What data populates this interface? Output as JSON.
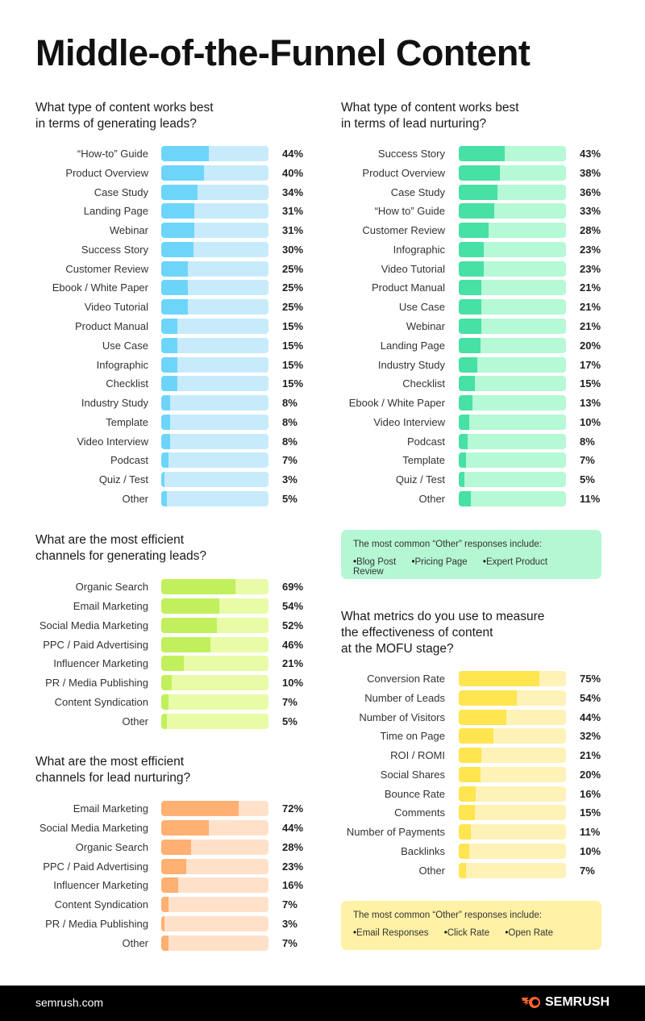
{
  "title": "Middle-of-the-Funnel Content",
  "chart_data": [
    {
      "type": "bar",
      "orientation": "horizontal",
      "title": "What type of content works best in terms of generating leads?",
      "xlim": [
        0,
        100
      ],
      "unit": "%",
      "categories": [
        "“How-to” Guide",
        "Product Overview",
        "Case Study",
        "Landing Page",
        "Webinar",
        "Success Story",
        "Customer Review",
        "Ebook / White Paper",
        "Video Tutorial",
        "Product Manual",
        "Use Case",
        "Infographic",
        "Checklist",
        "Industry Study",
        "Template",
        "Video Interview",
        "Podcast",
        "Quiz / Test",
        "Other"
      ],
      "values": [
        44,
        40,
        34,
        31,
        31,
        30,
        25,
        25,
        25,
        15,
        15,
        15,
        15,
        8,
        8,
        8,
        7,
        3,
        5
      ],
      "colors": {
        "fill": "#6dd5fa",
        "track": "#c8ebfc"
      }
    },
    {
      "type": "bar",
      "orientation": "horizontal",
      "title": "What type of content works best in terms of lead nurturing?",
      "xlim": [
        0,
        100
      ],
      "unit": "%",
      "categories": [
        "Success Story",
        "Product Overview",
        "Case Study",
        "“How to” Guide",
        "Customer Review",
        "Infographic",
        "Video Tutorial",
        "Product Manual",
        "Use Case",
        "Webinar",
        "Landing Page",
        "Industry Study",
        "Checklist",
        "Ebook / White Paper",
        "Video Interview",
        "Podcast",
        "Template",
        "Quiz / Test",
        "Other"
      ],
      "values": [
        43,
        38,
        36,
        33,
        28,
        23,
        23,
        21,
        21,
        21,
        20,
        17,
        15,
        13,
        10,
        8,
        7,
        5,
        11
      ],
      "colors": {
        "fill": "#47e0a5",
        "track": "#b5f9d6"
      }
    },
    {
      "type": "bar",
      "orientation": "horizontal",
      "title": "What are the most efficient channels for generating leads?",
      "xlim": [
        0,
        100
      ],
      "unit": "%",
      "categories": [
        "Organic Search",
        "Email Marketing",
        "Social Media Marketing",
        "PPC / Paid Advertising",
        "Influencer Marketing",
        "PR / Media Publishing",
        "Content Syndication",
        "Other"
      ],
      "values": [
        69,
        54,
        52,
        46,
        21,
        10,
        7,
        5
      ],
      "colors": {
        "fill": "#c1f05c",
        "track": "#e8fba6"
      }
    },
    {
      "type": "bar",
      "orientation": "horizontal",
      "title": "What are the most efficient channels for lead nurturing?",
      "xlim": [
        0,
        100
      ],
      "unit": "%",
      "categories": [
        "Email Marketing",
        "Social Media Marketing",
        "Organic Search",
        "PPC / Paid Advertising",
        "Influencer Marketing",
        "Content Syndication",
        "PR / Media Publishing",
        "Other"
      ],
      "values": [
        72,
        44,
        28,
        23,
        16,
        7,
        3,
        7
      ],
      "colors": {
        "fill": "#ffb072",
        "track": "#ffe1ca"
      }
    },
    {
      "type": "bar",
      "orientation": "horizontal",
      "title": "What metrics do you use to measure the effectiveness of content at the MOFU stage?",
      "xlim": [
        0,
        100
      ],
      "unit": "%",
      "categories": [
        "Conversion Rate",
        "Number of Leads",
        "Number of Visitors",
        "Time on Page",
        "ROI / ROMI",
        "Social Shares",
        "Bounce Rate",
        "Comments",
        "Number of Payments",
        "Backlinks",
        "Other"
      ],
      "values": [
        75,
        54,
        44,
        32,
        21,
        20,
        16,
        15,
        11,
        10,
        7
      ],
      "colors": {
        "fill": "#ffe54f",
        "track": "#fff2b6"
      }
    }
  ],
  "questions": [
    [
      "What type of content works best",
      "in terms of generating leads?"
    ],
    [
      "What type of content works best",
      "in terms of lead nurturing?"
    ],
    [
      "What are the most efficient",
      "channels for generating leads?"
    ],
    [
      "What are the most efficient",
      "channels for lead nurturing?"
    ],
    [
      "What metrics do you use to measure",
      "the effectiveness of content",
      "at the MOFU stage?"
    ]
  ],
  "other_boxes": [
    {
      "title": "The most common “Other” responses include:",
      "items": [
        "Blog Post",
        "Pricing Page",
        "Expert Product Review"
      ],
      "color": "#b5f7d3"
    },
    {
      "title": "The most common “Other” responses include:",
      "items": [
        "Email Responses",
        "Click Rate",
        "Open Rate"
      ],
      "color": "#fff1a6"
    }
  ],
  "footer": {
    "site": "semrush.com",
    "logo": "SEMRUSH",
    "logo_color": "#ff642d"
  }
}
